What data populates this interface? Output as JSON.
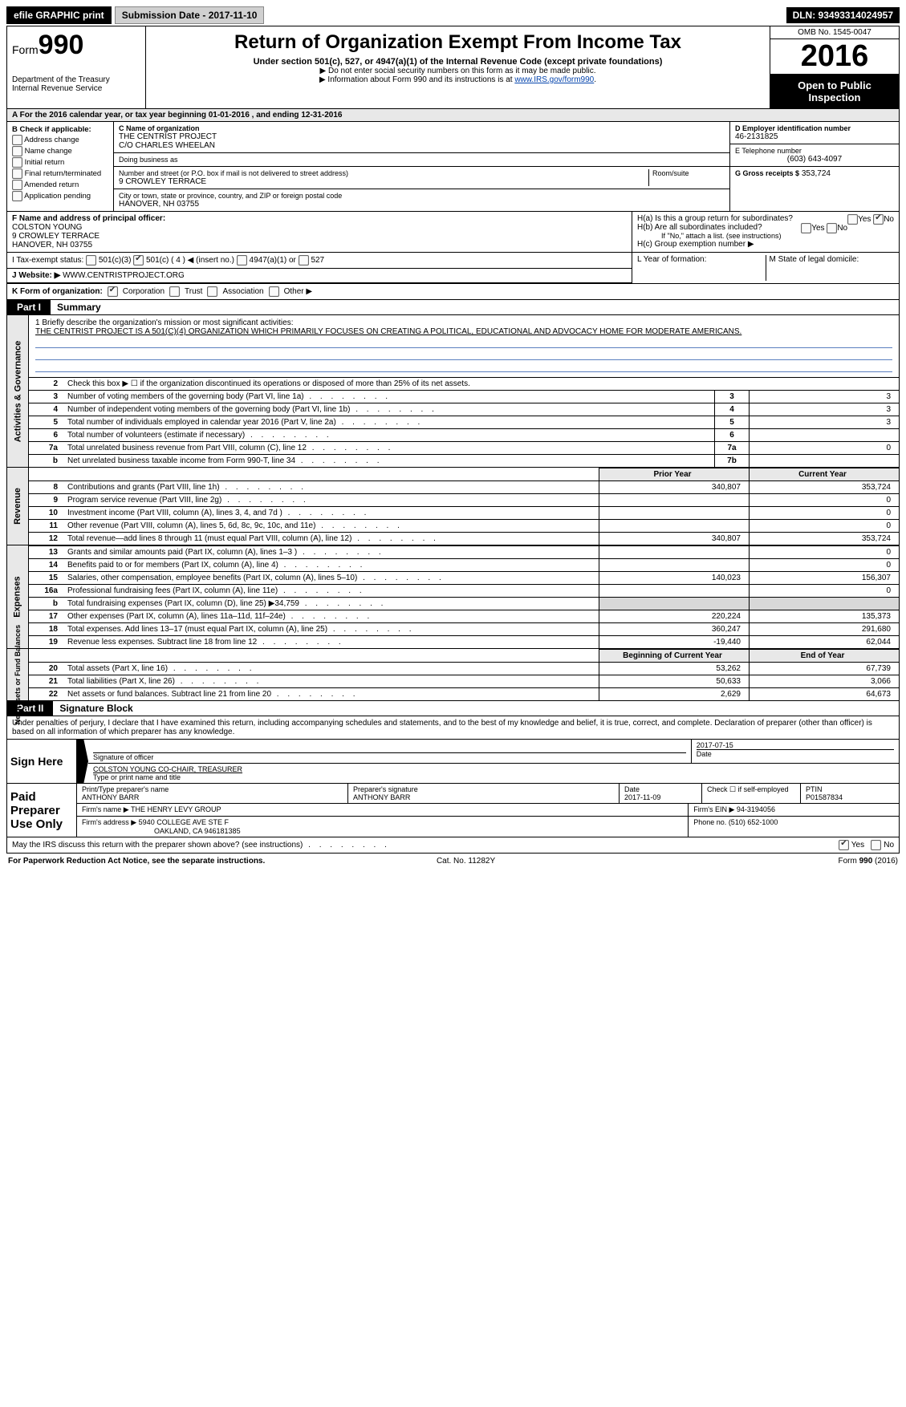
{
  "topbar": {
    "efile": "efile GRAPHIC print",
    "submission": "Submission Date - 2017-11-10",
    "dln": "DLN: 93493314024957"
  },
  "header": {
    "form_label": "Form",
    "form_number": "990",
    "dept1": "Department of the Treasury",
    "dept2": "Internal Revenue Service",
    "title": "Return of Organization Exempt From Income Tax",
    "subtitle": "Under section 501(c), 527, or 4947(a)(1) of the Internal Revenue Code (except private foundations)",
    "note1": "▶ Do not enter social security numbers on this form as it may be made public.",
    "note2_pre": "▶ Information about Form 990 and its instructions is at ",
    "note2_link": "www.IRS.gov/form990",
    "omb": "OMB No. 1545-0047",
    "year": "2016",
    "open1": "Open to Public",
    "open2": "Inspection"
  },
  "rowA": "A   For the 2016 calendar year, or tax year beginning 01-01-2016        , and ending 12-31-2016",
  "sectionB": {
    "label": "B Check if applicable:",
    "opts": [
      "Address change",
      "Name change",
      "Initial return",
      "Final return/terminated",
      "Amended return",
      "Application pending"
    ]
  },
  "sectionC": {
    "c_label": "C Name of organization",
    "org1": "THE CENTRIST PROJECT",
    "org2": "C/O CHARLES WHEELAN",
    "dba_label": "Doing business as",
    "addr_label": "Number and street (or P.O. box if mail is not delivered to street address)",
    "room_label": "Room/suite",
    "street": "9 CROWLEY TERRACE",
    "city_label": "City or town, state or province, country, and ZIP or foreign postal code",
    "city": "HANOVER, NH   03755"
  },
  "sectionD": {
    "d_label": "D Employer identification number",
    "ein": "46-2131825",
    "e_label": "E Telephone number",
    "phone": "(603) 643-4097",
    "g_label": "G Gross receipts $",
    "g_val": "353,724"
  },
  "sectionF": {
    "label": "F  Name and address of principal officer:",
    "name": "COLSTON YOUNG",
    "addr": "9 CROWLEY TERRACE",
    "city": "HANOVER, NH   03755"
  },
  "sectionH": {
    "ha": "H(a)   Is this a group return for subordinates?",
    "hb": "H(b)   Are all subordinates included?",
    "hb_note": "If \"No,\" attach a list. (see instructions)",
    "hc": "H(c)   Group exemption number ▶"
  },
  "rowI": {
    "label": "I     Tax-exempt status:",
    "o1": "501(c)(3)",
    "o2": "501(c) ( 4 ) ◀ (insert no.)",
    "o3": "4947(a)(1) or",
    "o4": "527"
  },
  "rowJ": {
    "label": "J    Website: ▶",
    "val": "WWW.CENTRISTPROJECT.ORG"
  },
  "rowK": {
    "label": "K Form of organization:",
    "o1": "Corporation",
    "o2": "Trust",
    "o3": "Association",
    "o4": "Other ▶"
  },
  "rowLM": {
    "l": "L Year of formation:",
    "m": "M State of legal domicile:"
  },
  "part1": {
    "tag": "Part I",
    "title": "Summary"
  },
  "mission": {
    "q": "1  Briefly describe the organization's mission or most significant activities:",
    "text": "THE CENTRIST PROJECT IS A 501(C)(4) ORGANIZATION WHICH PRIMARILY FOCUSES ON CREATING A POLITICAL, EDUCATIONAL AND ADVOCACY HOME FOR MODERATE AMERICANS."
  },
  "gov_rows": [
    {
      "n": "2",
      "t": "Check this box ▶ ☐  if the organization discontinued its operations or disposed of more than 25% of its net assets.",
      "box": "",
      "v": ""
    },
    {
      "n": "3",
      "t": "Number of voting members of the governing body (Part VI, line 1a)",
      "box": "3",
      "v": "3"
    },
    {
      "n": "4",
      "t": "Number of independent voting members of the governing body (Part VI, line 1b)",
      "box": "4",
      "v": "3"
    },
    {
      "n": "5",
      "t": "Total number of individuals employed in calendar year 2016 (Part V, line 2a)",
      "box": "5",
      "v": "3"
    },
    {
      "n": "6",
      "t": "Total number of volunteers (estimate if necessary)",
      "box": "6",
      "v": ""
    },
    {
      "n": "7a",
      "t": "Total unrelated business revenue from Part VIII, column (C), line 12",
      "box": "7a",
      "v": "0"
    },
    {
      "n": "b",
      "t": "Net unrelated business taxable income from Form 990-T, line 34",
      "box": "7b",
      "v": ""
    }
  ],
  "col_hdrs": {
    "prior": "Prior Year",
    "current": "Current Year"
  },
  "rev_rows": [
    {
      "n": "8",
      "t": "Contributions and grants (Part VIII, line 1h)",
      "p": "340,807",
      "c": "353,724"
    },
    {
      "n": "9",
      "t": "Program service revenue (Part VIII, line 2g)",
      "p": "",
      "c": "0"
    },
    {
      "n": "10",
      "t": "Investment income (Part VIII, column (A), lines 3, 4, and 7d )",
      "p": "",
      "c": "0"
    },
    {
      "n": "11",
      "t": "Other revenue (Part VIII, column (A), lines 5, 6d, 8c, 9c, 10c, and 11e)",
      "p": "",
      "c": "0"
    },
    {
      "n": "12",
      "t": "Total revenue—add lines 8 through 11 (must equal Part VIII, column (A), line 12)",
      "p": "340,807",
      "c": "353,724"
    }
  ],
  "exp_rows": [
    {
      "n": "13",
      "t": "Grants and similar amounts paid (Part IX, column (A), lines 1–3 )",
      "p": "",
      "c": "0"
    },
    {
      "n": "14",
      "t": "Benefits paid to or for members (Part IX, column (A), line 4)",
      "p": "",
      "c": "0"
    },
    {
      "n": "15",
      "t": "Salaries, other compensation, employee benefits (Part IX, column (A), lines 5–10)",
      "p": "140,023",
      "c": "156,307"
    },
    {
      "n": "16a",
      "t": "Professional fundraising fees (Part IX, column (A), line 11e)",
      "p": "",
      "c": "0"
    },
    {
      "n": "b",
      "t": "Total fundraising expenses (Part IX, column (D), line 25) ▶34,759",
      "p": "SHADE",
      "c": "SHADE"
    },
    {
      "n": "17",
      "t": "Other expenses (Part IX, column (A), lines 11a–11d, 11f–24e)",
      "p": "220,224",
      "c": "135,373"
    },
    {
      "n": "18",
      "t": "Total expenses. Add lines 13–17 (must equal Part IX, column (A), line 25)",
      "p": "360,247",
      "c": "291,680"
    },
    {
      "n": "19",
      "t": "Revenue less expenses. Subtract line 18 from line 12",
      "p": "-19,440",
      "c": "62,044"
    }
  ],
  "na_hdrs": {
    "beg": "Beginning of Current Year",
    "end": "End of Year"
  },
  "na_rows": [
    {
      "n": "20",
      "t": "Total assets (Part X, line 16)",
      "p": "53,262",
      "c": "67,739"
    },
    {
      "n": "21",
      "t": "Total liabilities (Part X, line 26)",
      "p": "50,633",
      "c": "3,066"
    },
    {
      "n": "22",
      "t": "Net assets or fund balances. Subtract line 21 from line 20",
      "p": "2,629",
      "c": "64,673"
    }
  ],
  "part2": {
    "tag": "Part II",
    "title": "Signature Block"
  },
  "sig": {
    "decl": "Under penalties of perjury, I declare that I have examined this return, including accompanying schedules and statements, and to the best of my knowledge and belief, it is true, correct, and complete. Declaration of preparer (other than officer) is based on all information of which preparer has any knowledge.",
    "sign_here": "Sign Here",
    "sig_officer": "Signature of officer",
    "date": "Date",
    "date_val": "2017-07-15",
    "name_line": "COLSTON YOUNG  CO-CHAIR, TREASURER",
    "name_label": "Type or print name and title",
    "paid": "Paid Preparer Use Only",
    "prep_name_label": "Print/Type preparer's name",
    "prep_name": "ANTHONY BARR",
    "prep_sig_label": "Preparer's signature",
    "prep_sig": "ANTHONY BARR",
    "prep_date_label": "Date",
    "prep_date": "2017-11-09",
    "self_emp": "Check ☐ if self-employed",
    "ptin_label": "PTIN",
    "ptin": "P01587834",
    "firm_name_label": "Firm's name      ▶",
    "firm_name": "THE HENRY LEVY GROUP",
    "firm_ein_label": "Firm's EIN ▶",
    "firm_ein": "94-3194056",
    "firm_addr_label": "Firm's address ▶",
    "firm_addr": "5940 COLLEGE AVE STE F",
    "firm_city": "OAKLAND, CA   946181385",
    "phone_label": "Phone no.",
    "phone": "(510) 652-1000"
  },
  "discuss": "May the IRS discuss this return with the preparer shown above? (see instructions)",
  "footer": {
    "left": "For Paperwork Reduction Act Notice, see the separate instructions.",
    "mid": "Cat. No. 11282Y",
    "right": "Form 990 (2016)"
  },
  "vlabels": {
    "gov": "Activities & Governance",
    "rev": "Revenue",
    "exp": "Expenses",
    "na": "Net Assets or\nFund Balances"
  }
}
